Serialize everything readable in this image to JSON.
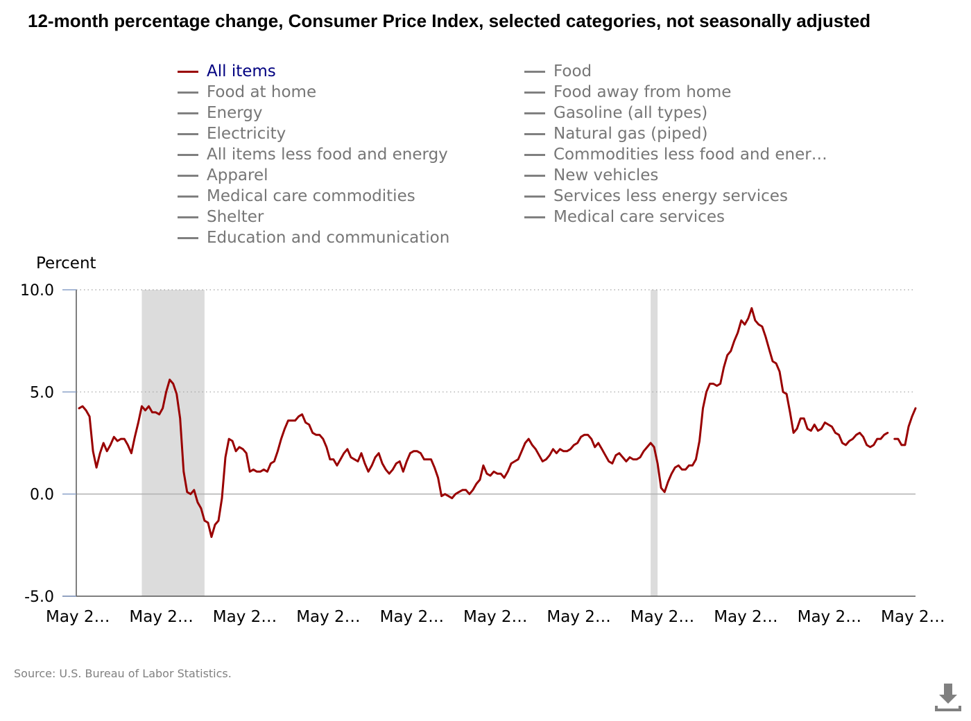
{
  "title": "12-month percentage change, Consumer Price Index, selected categories, not seasonally adjusted",
  "legend": {
    "left": [
      "All items",
      "Food at home",
      "Energy",
      "Electricity",
      "All items less food and energy",
      "Apparel",
      "Medical care commodities",
      "Shelter",
      "Education and communication"
    ],
    "right": [
      "Food",
      "Food away from home",
      "Gasoline (all types)",
      "Natural gas (piped)",
      "Commodities less food and ener…",
      "New vehicles",
      "Services less energy services",
      "Medical care services"
    ],
    "active": "All items"
  },
  "source": "Source: U.S. Bureau of Labor Statistics.",
  "download_icon": "download-icon",
  "chart_data": {
    "type": "line",
    "ylabel": "Percent",
    "ylim": [
      -5,
      10
    ],
    "yticks": [
      "10.0",
      "5.0",
      "0.0",
      "-5.0"
    ],
    "ytick_values": [
      10,
      5,
      0,
      -5
    ],
    "xticks": [
      "May 2…",
      "May 2…",
      "May 2…",
      "May 2…",
      "May 2…",
      "May 2…",
      "May 2…",
      "May 2…",
      "May 2…",
      "May 2…",
      "May 2…"
    ],
    "x_range_months": [
      0,
      240
    ],
    "recessions": [
      [
        18,
        36
      ],
      [
        164,
        166
      ]
    ],
    "grid": "dotted horizontal",
    "series": [
      {
        "name": "All items",
        "color": "#990000",
        "points": [
          [
            0,
            4.2
          ],
          [
            1,
            4.3
          ],
          [
            2,
            4.1
          ],
          [
            3,
            3.8
          ],
          [
            4,
            2.1
          ],
          [
            5,
            1.3
          ],
          [
            6,
            2.0
          ],
          [
            7,
            2.5
          ],
          [
            8,
            2.1
          ],
          [
            9,
            2.4
          ],
          [
            10,
            2.8
          ],
          [
            11,
            2.6
          ],
          [
            12,
            2.7
          ],
          [
            13,
            2.7
          ],
          [
            14,
            2.4
          ],
          [
            15,
            2.0
          ],
          [
            16,
            2.8
          ],
          [
            17,
            3.5
          ],
          [
            18,
            4.3
          ],
          [
            19,
            4.1
          ],
          [
            20,
            4.3
          ],
          [
            21,
            4.0
          ],
          [
            22,
            4.0
          ],
          [
            23,
            3.9
          ],
          [
            24,
            4.2
          ],
          [
            25,
            5.0
          ],
          [
            26,
            5.6
          ],
          [
            27,
            5.4
          ],
          [
            28,
            4.9
          ],
          [
            29,
            3.7
          ],
          [
            30,
            1.1
          ],
          [
            31,
            0.1
          ],
          [
            32,
            0.0
          ],
          [
            33,
            0.2
          ],
          [
            34,
            -0.4
          ],
          [
            35,
            -0.7
          ],
          [
            36,
            -1.3
          ],
          [
            37,
            -1.4
          ],
          [
            38,
            -2.1
          ],
          [
            39,
            -1.5
          ],
          [
            40,
            -1.3
          ],
          [
            41,
            -0.2
          ],
          [
            42,
            1.8
          ],
          [
            43,
            2.7
          ],
          [
            44,
            2.6
          ],
          [
            45,
            2.1
          ],
          [
            46,
            2.3
          ],
          [
            47,
            2.2
          ],
          [
            48,
            2.0
          ],
          [
            49,
            1.1
          ],
          [
            50,
            1.2
          ],
          [
            51,
            1.1
          ],
          [
            52,
            1.1
          ],
          [
            53,
            1.2
          ],
          [
            54,
            1.1
          ],
          [
            55,
            1.5
          ],
          [
            56,
            1.6
          ],
          [
            57,
            2.1
          ],
          [
            58,
            2.7
          ],
          [
            59,
            3.2
          ],
          [
            60,
            3.6
          ],
          [
            61,
            3.6
          ],
          [
            62,
            3.6
          ],
          [
            63,
            3.8
          ],
          [
            64,
            3.9
          ],
          [
            65,
            3.5
          ],
          [
            66,
            3.4
          ],
          [
            67,
            3.0
          ],
          [
            68,
            2.9
          ],
          [
            69,
            2.9
          ],
          [
            70,
            2.7
          ],
          [
            71,
            2.3
          ],
          [
            72,
            1.7
          ],
          [
            73,
            1.7
          ],
          [
            74,
            1.4
          ],
          [
            75,
            1.7
          ],
          [
            76,
            2.0
          ],
          [
            77,
            2.2
          ],
          [
            78,
            1.8
          ],
          [
            79,
            1.7
          ],
          [
            80,
            1.6
          ],
          [
            81,
            2.0
          ],
          [
            82,
            1.5
          ],
          [
            83,
            1.1
          ],
          [
            84,
            1.4
          ],
          [
            85,
            1.8
          ],
          [
            86,
            2.0
          ],
          [
            87,
            1.5
          ],
          [
            88,
            1.2
          ],
          [
            89,
            1.0
          ],
          [
            90,
            1.2
          ],
          [
            91,
            1.5
          ],
          [
            92,
            1.6
          ],
          [
            93,
            1.1
          ],
          [
            94,
            1.6
          ],
          [
            95,
            2.0
          ],
          [
            96,
            2.1
          ],
          [
            97,
            2.1
          ],
          [
            98,
            2.0
          ],
          [
            99,
            1.7
          ],
          [
            100,
            1.7
          ],
          [
            101,
            1.7
          ],
          [
            102,
            1.3
          ],
          [
            103,
            0.8
          ],
          [
            104,
            -0.1
          ],
          [
            105,
            0.0
          ],
          [
            106,
            -0.1
          ],
          [
            107,
            -0.2
          ],
          [
            108,
            0.0
          ],
          [
            109,
            0.1
          ],
          [
            110,
            0.2
          ],
          [
            111,
            0.2
          ],
          [
            112,
            0.0
          ],
          [
            113,
            0.2
          ],
          [
            114,
            0.5
          ],
          [
            115,
            0.7
          ],
          [
            116,
            1.4
          ],
          [
            117,
            1.0
          ],
          [
            118,
            0.9
          ],
          [
            119,
            1.1
          ],
          [
            120,
            1.0
          ],
          [
            121,
            1.0
          ],
          [
            122,
            0.8
          ],
          [
            123,
            1.1
          ],
          [
            124,
            1.5
          ],
          [
            125,
            1.6
          ],
          [
            126,
            1.7
          ],
          [
            127,
            2.1
          ],
          [
            128,
            2.5
          ],
          [
            129,
            2.7
          ],
          [
            130,
            2.4
          ],
          [
            131,
            2.2
          ],
          [
            132,
            1.9
          ],
          [
            133,
            1.6
          ],
          [
            134,
            1.7
          ],
          [
            135,
            1.9
          ],
          [
            136,
            2.2
          ],
          [
            137,
            2.0
          ],
          [
            138,
            2.2
          ],
          [
            139,
            2.1
          ],
          [
            140,
            2.1
          ],
          [
            141,
            2.2
          ],
          [
            142,
            2.4
          ],
          [
            143,
            2.5
          ],
          [
            144,
            2.8
          ],
          [
            145,
            2.9
          ],
          [
            146,
            2.9
          ],
          [
            147,
            2.7
          ],
          [
            148,
            2.3
          ],
          [
            149,
            2.5
          ],
          [
            150,
            2.2
          ],
          [
            151,
            1.9
          ],
          [
            152,
            1.6
          ],
          [
            153,
            1.5
          ],
          [
            154,
            1.9
          ],
          [
            155,
            2.0
          ],
          [
            156,
            1.8
          ],
          [
            157,
            1.6
          ],
          [
            158,
            1.8
          ],
          [
            159,
            1.7
          ],
          [
            160,
            1.7
          ],
          [
            161,
            1.8
          ],
          [
            162,
            2.1
          ],
          [
            163,
            2.3
          ],
          [
            164,
            2.5
          ],
          [
            165,
            2.3
          ],
          [
            166,
            1.5
          ],
          [
            167,
            0.3
          ],
          [
            168,
            0.1
          ],
          [
            169,
            0.6
          ],
          [
            170,
            1.0
          ],
          [
            171,
            1.3
          ],
          [
            172,
            1.4
          ],
          [
            173,
            1.2
          ],
          [
            174,
            1.2
          ],
          [
            175,
            1.4
          ],
          [
            176,
            1.4
          ],
          [
            177,
            1.7
          ],
          [
            178,
            2.6
          ],
          [
            179,
            4.2
          ],
          [
            180,
            5.0
          ],
          [
            181,
            5.4
          ],
          [
            182,
            5.4
          ],
          [
            183,
            5.3
          ],
          [
            184,
            5.4
          ],
          [
            185,
            6.2
          ],
          [
            186,
            6.8
          ],
          [
            187,
            7.0
          ],
          [
            188,
            7.5
          ],
          [
            189,
            7.9
          ],
          [
            190,
            8.5
          ],
          [
            191,
            8.3
          ],
          [
            192,
            8.6
          ],
          [
            193,
            9.1
          ],
          [
            194,
            8.5
          ],
          [
            195,
            8.3
          ],
          [
            196,
            8.2
          ],
          [
            197,
            7.7
          ],
          [
            198,
            7.1
          ],
          [
            199,
            6.5
          ],
          [
            200,
            6.4
          ],
          [
            201,
            6.0
          ],
          [
            202,
            5.0
          ],
          [
            203,
            4.9
          ],
          [
            204,
            4.0
          ],
          [
            205,
            3.0
          ],
          [
            206,
            3.2
          ],
          [
            207,
            3.7
          ],
          [
            208,
            3.7
          ],
          [
            209,
            3.2
          ],
          [
            210,
            3.1
          ],
          [
            211,
            3.4
          ],
          [
            212,
            3.1
          ],
          [
            213,
            3.2
          ],
          [
            214,
            3.5
          ],
          [
            215,
            3.4
          ],
          [
            216,
            3.3
          ],
          [
            217,
            3.0
          ],
          [
            218,
            2.9
          ],
          [
            219,
            2.5
          ],
          [
            220,
            2.4
          ],
          [
            221,
            2.6
          ],
          [
            222,
            2.7
          ],
          [
            223,
            2.9
          ],
          [
            224,
            3.0
          ],
          [
            225,
            2.8
          ],
          [
            226,
            2.4
          ],
          [
            227,
            2.3
          ],
          [
            228,
            2.4
          ],
          [
            229,
            2.7
          ],
          [
            230,
            2.7
          ],
          [
            231,
            2.9
          ],
          [
            232,
            3.0
          ],
          null,
          [
            234,
            2.7
          ],
          [
            235,
            2.7
          ],
          [
            236,
            2.4
          ],
          [
            237,
            2.4
          ],
          [
            238,
            3.3
          ],
          [
            239,
            3.8
          ],
          [
            240,
            4.2
          ]
        ]
      }
    ]
  }
}
